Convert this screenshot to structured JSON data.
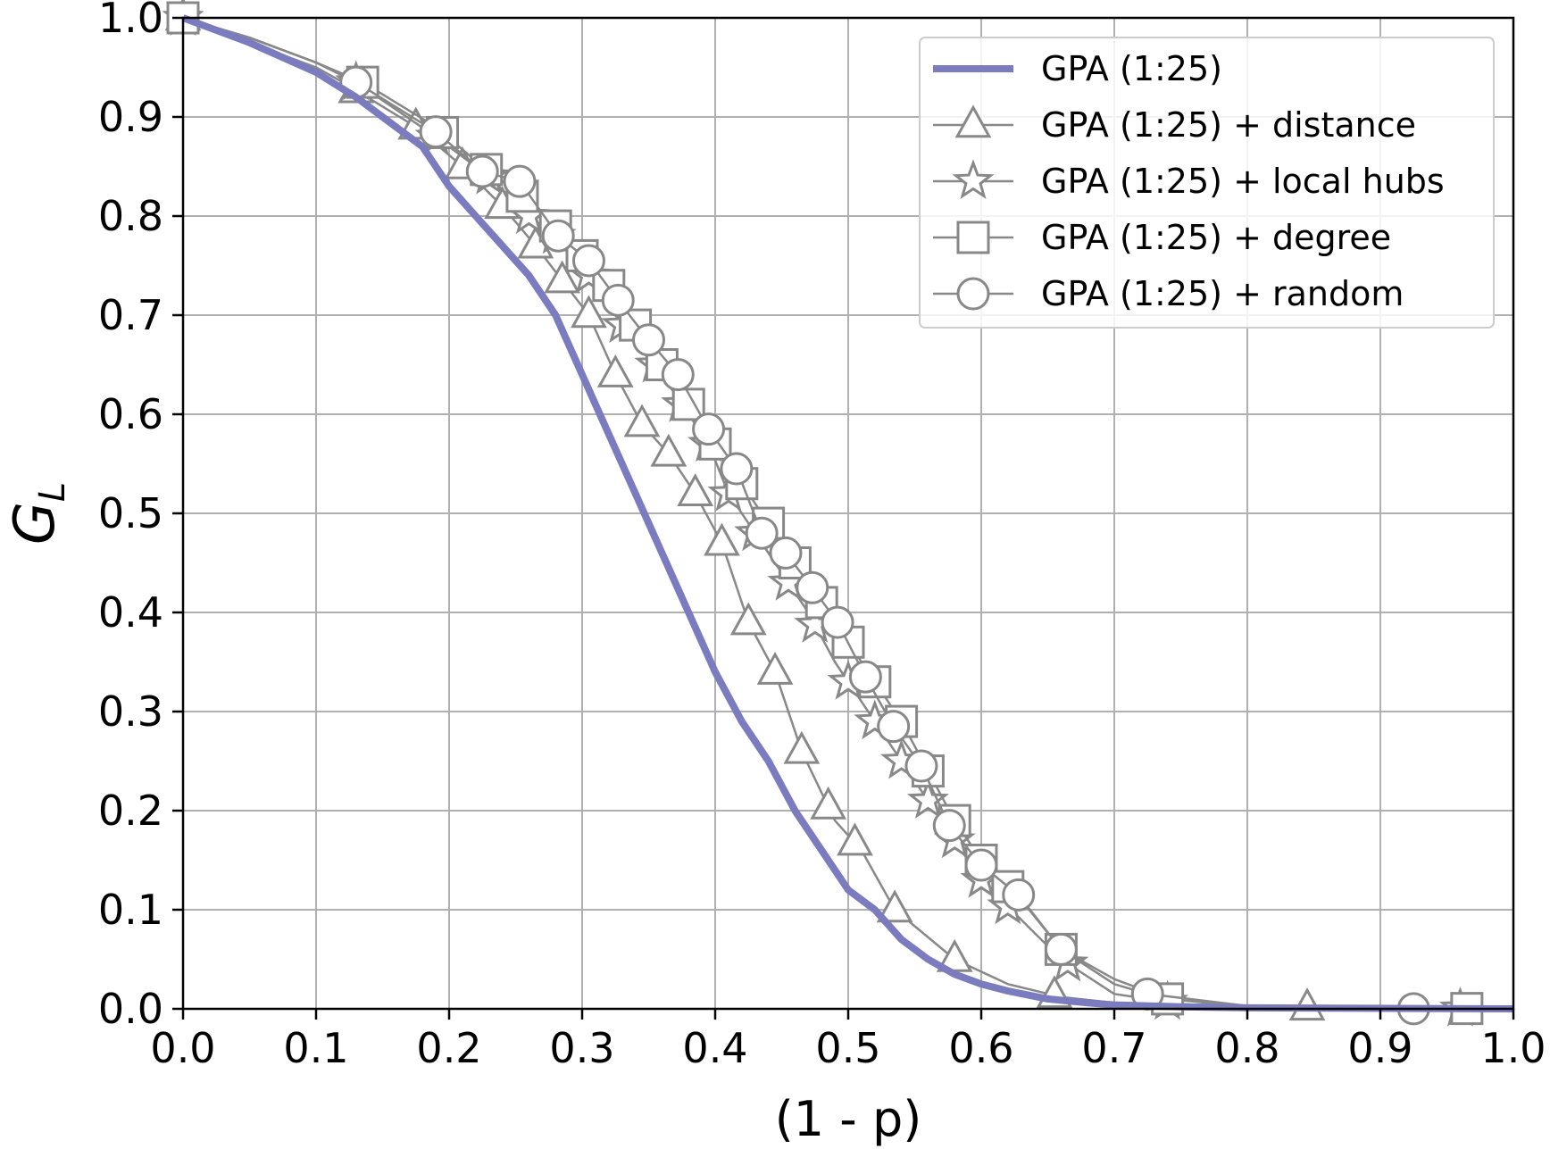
{
  "chart_data": {
    "type": "line",
    "xlabel": "(1 - p)",
    "ylabel": "G",
    "ylabel_sub": "L",
    "xlim": [
      0.0,
      1.0
    ],
    "ylim": [
      0.0,
      1.0
    ],
    "xticks": [
      "0.0",
      "0.1",
      "0.2",
      "0.3",
      "0.4",
      "0.5",
      "0.6",
      "0.7",
      "0.8",
      "0.9",
      "1.0"
    ],
    "yticks": [
      "0.0",
      "0.1",
      "0.2",
      "0.3",
      "0.4",
      "0.5",
      "0.6",
      "0.7",
      "0.8",
      "0.9",
      "1.0"
    ],
    "grid": true,
    "legend_position": "top-right",
    "colors": {
      "baseline": "#7b7bbf",
      "markers": "#888888"
    },
    "series": [
      {
        "name": "GPA (1:25)",
        "marker": "none",
        "x": [
          0.0,
          0.05,
          0.1,
          0.13,
          0.15,
          0.18,
          0.2,
          0.22,
          0.24,
          0.26,
          0.28,
          0.3,
          0.32,
          0.34,
          0.36,
          0.38,
          0.4,
          0.42,
          0.44,
          0.46,
          0.48,
          0.5,
          0.52,
          0.54,
          0.56,
          0.58,
          0.6,
          0.62,
          0.65,
          0.68,
          0.7,
          0.75,
          0.8,
          1.0
        ],
        "values": [
          1.0,
          0.975,
          0.945,
          0.92,
          0.9,
          0.87,
          0.83,
          0.8,
          0.77,
          0.74,
          0.7,
          0.64,
          0.58,
          0.52,
          0.46,
          0.4,
          0.34,
          0.29,
          0.25,
          0.2,
          0.16,
          0.12,
          0.1,
          0.07,
          0.05,
          0.035,
          0.025,
          0.018,
          0.01,
          0.006,
          0.004,
          0.002,
          0.001,
          0.0
        ]
      },
      {
        "name": "GPA (1:25) + distance",
        "marker": "triangle",
        "x": [
          0.0,
          0.05,
          0.1,
          0.12,
          0.175,
          0.21,
          0.24,
          0.265,
          0.285,
          0.305,
          0.325,
          0.345,
          0.365,
          0.385,
          0.405,
          0.425,
          0.445,
          0.465,
          0.49,
          0.51,
          0.535,
          0.58,
          0.62,
          0.66,
          0.7,
          0.75,
          0.8,
          0.85,
          0.9,
          1.0
        ],
        "values": [
          1.0,
          0.975,
          0.95,
          0.935,
          0.89,
          0.85,
          0.81,
          0.77,
          0.735,
          0.7,
          0.64,
          0.59,
          0.56,
          0.52,
          0.47,
          0.39,
          0.34,
          0.26,
          0.19,
          0.16,
          0.1,
          0.05,
          0.025,
          0.012,
          0.006,
          0.003,
          0.0015,
          0.001,
          0.0005,
          0.0
        ],
        "markers_at": [
          0.0,
          0.13,
          0.175,
          0.21,
          0.24,
          0.265,
          0.285,
          0.305,
          0.325,
          0.345,
          0.365,
          0.385,
          0.405,
          0.425,
          0.445,
          0.465,
          0.485,
          0.505,
          0.535,
          0.58,
          0.655,
          0.845
        ]
      },
      {
        "name": "GPA (1:25) + local hubs",
        "marker": "star",
        "x": [
          0.0,
          0.05,
          0.1,
          0.13,
          0.19,
          0.23,
          0.26,
          0.29,
          0.31,
          0.33,
          0.355,
          0.375,
          0.395,
          0.41,
          0.43,
          0.45,
          0.47,
          0.49,
          0.51,
          0.53,
          0.55,
          0.575,
          0.6,
          0.63,
          0.66,
          0.7,
          0.75,
          0.8,
          1.0
        ],
        "values": [
          1.0,
          0.98,
          0.955,
          0.935,
          0.88,
          0.84,
          0.8,
          0.77,
          0.73,
          0.69,
          0.65,
          0.61,
          0.57,
          0.52,
          0.48,
          0.44,
          0.4,
          0.35,
          0.31,
          0.27,
          0.23,
          0.18,
          0.13,
          0.09,
          0.05,
          0.015,
          0.005,
          0.001,
          0.0
        ],
        "markers_at": [
          0.0,
          0.13,
          0.19,
          0.23,
          0.26,
          0.28,
          0.305,
          0.33,
          0.355,
          0.375,
          0.395,
          0.41,
          0.43,
          0.455,
          0.475,
          0.5,
          0.52,
          0.54,
          0.56,
          0.58,
          0.6,
          0.62,
          0.665,
          0.74,
          0.96
        ]
      },
      {
        "name": "GPA (1:25) + degree",
        "marker": "square",
        "x": [
          0.0,
          0.05,
          0.1,
          0.135,
          0.19,
          0.225,
          0.255,
          0.28,
          0.3,
          0.32,
          0.34,
          0.36,
          0.38,
          0.4,
          0.42,
          0.44,
          0.46,
          0.48,
          0.5,
          0.52,
          0.54,
          0.56,
          0.58,
          0.6,
          0.63,
          0.66,
          0.7,
          0.74,
          0.8,
          1.0
        ],
        "values": [
          1.0,
          0.98,
          0.955,
          0.935,
          0.89,
          0.85,
          0.82,
          0.79,
          0.76,
          0.73,
          0.69,
          0.65,
          0.61,
          0.57,
          0.53,
          0.49,
          0.45,
          0.41,
          0.37,
          0.33,
          0.29,
          0.24,
          0.19,
          0.15,
          0.11,
          0.06,
          0.03,
          0.01,
          0.002,
          0.0
        ],
        "markers_at": [
          0.0,
          0.135,
          0.195,
          0.228,
          0.255,
          0.28,
          0.3,
          0.32,
          0.34,
          0.36,
          0.38,
          0.4,
          0.42,
          0.44,
          0.46,
          0.48,
          0.5,
          0.52,
          0.54,
          0.56,
          0.58,
          0.6,
          0.62,
          0.66,
          0.74,
          0.965
        ]
      },
      {
        "name": "GPA (1:25) + random",
        "marker": "circle",
        "x": [
          0.0,
          0.05,
          0.1,
          0.13,
          0.19,
          0.225,
          0.253,
          0.282,
          0.305,
          0.327,
          0.35,
          0.372,
          0.395,
          0.416,
          0.435,
          0.453,
          0.473,
          0.492,
          0.513,
          0.534,
          0.555,
          0.576,
          0.6,
          0.628,
          0.66,
          0.7,
          0.725,
          0.8,
          0.93,
          1.0
        ],
        "values": [
          1.0,
          0.98,
          0.955,
          0.935,
          0.885,
          0.845,
          0.835,
          0.78,
          0.755,
          0.715,
          0.675,
          0.64,
          0.585,
          0.545,
          0.48,
          0.46,
          0.425,
          0.39,
          0.335,
          0.285,
          0.245,
          0.185,
          0.145,
          0.115,
          0.06,
          0.025,
          0.015,
          0.003,
          0.0,
          0.0
        ],
        "markers_at": [
          0.13,
          0.19,
          0.225,
          0.253,
          0.282,
          0.305,
          0.327,
          0.35,
          0.372,
          0.395,
          0.416,
          0.435,
          0.453,
          0.473,
          0.492,
          0.513,
          0.534,
          0.555,
          0.576,
          0.6,
          0.628,
          0.66,
          0.725,
          0.925
        ]
      }
    ]
  }
}
